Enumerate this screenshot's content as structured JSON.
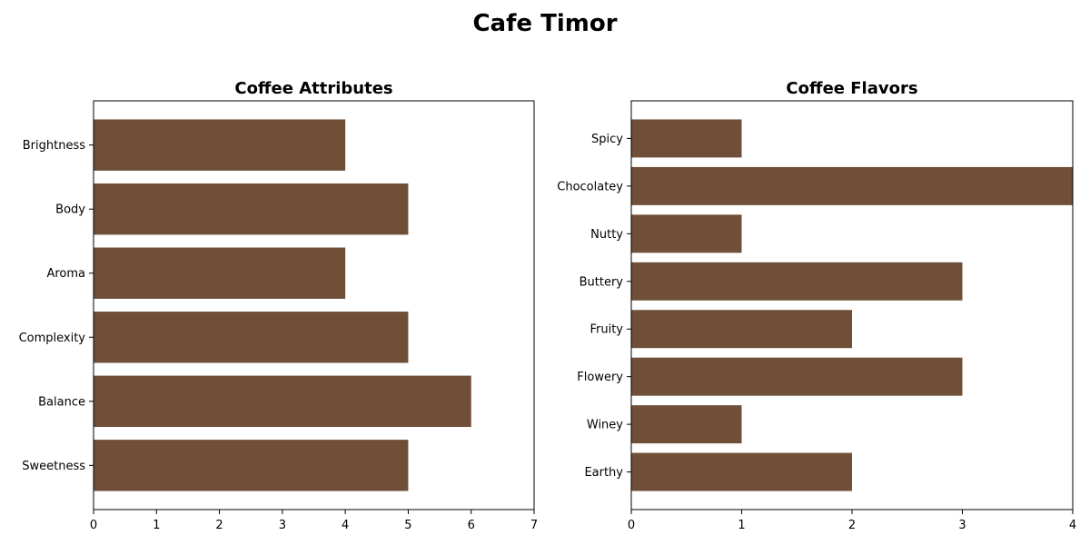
{
  "title": "Cafe Timor",
  "colors": {
    "bar": "#6f4f37",
    "axis": "#000000",
    "background": "#ffffff"
  },
  "chart_data": [
    {
      "type": "bar",
      "orientation": "horizontal",
      "title": "Coffee Attributes",
      "categories": [
        "Brightness",
        "Body",
        "Aroma",
        "Complexity",
        "Balance",
        "Sweetness"
      ],
      "values": [
        4,
        5,
        4,
        5,
        6,
        5
      ],
      "xlim": [
        0,
        7
      ],
      "xticks": [
        0,
        1,
        2,
        3,
        4,
        5,
        6,
        7
      ],
      "grid": false
    },
    {
      "type": "bar",
      "orientation": "horizontal",
      "title": "Coffee Flavors",
      "categories": [
        "Spicy",
        "Chocolatey",
        "Nutty",
        "Buttery",
        "Fruity",
        "Flowery",
        "Winey",
        "Earthy"
      ],
      "values": [
        1,
        4,
        1,
        3,
        2,
        3,
        1,
        2
      ],
      "xlim": [
        0,
        4
      ],
      "xticks": [
        0,
        1,
        2,
        3,
        4
      ],
      "grid": false
    }
  ]
}
